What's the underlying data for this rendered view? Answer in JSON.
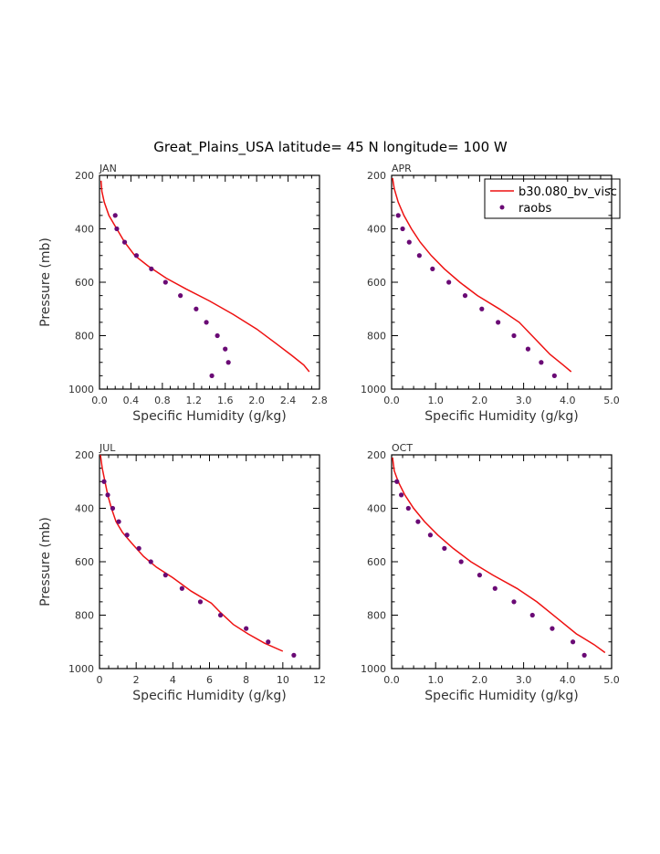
{
  "page_title": "Great_Plains_USA  latitude= 45 N longitude= 100 W",
  "colors": {
    "model": "#ee1111",
    "obs": "#6a0a75",
    "axis": "#000000",
    "text": "#333333"
  },
  "legend": {
    "model_label": "b30.080_bv_visc",
    "obs_label": "raobs"
  },
  "chart_data": [
    {
      "panel": "JAN",
      "type": "line",
      "xlabel": "Specific Humidity (g/kg)",
      "ylabel": "Pressure (mb)",
      "xlim": [
        0,
        2.8
      ],
      "ylim": [
        200,
        1000
      ],
      "xticks": [
        0.0,
        0.4,
        0.8,
        1.2,
        1.6,
        2.0,
        2.4,
        2.8
      ],
      "xtick_labels": [
        "0.0",
        "0.4",
        "0.8",
        "1.2",
        "1.6",
        "2.0",
        "2.4",
        "2.8"
      ],
      "yticks": [
        200,
        400,
        600,
        800,
        1000
      ],
      "model": {
        "x": [
          0.02,
          0.03,
          0.06,
          0.12,
          0.22,
          0.32,
          0.45,
          0.62,
          0.85,
          1.1,
          1.4,
          1.7,
          2.0,
          2.25,
          2.45,
          2.6,
          2.67
        ],
        "y": [
          220,
          260,
          300,
          350,
          400,
          450,
          500,
          540,
          585,
          625,
          670,
          720,
          775,
          830,
          875,
          910,
          935
        ]
      },
      "obs": {
        "x": [
          0.2,
          0.22,
          0.32,
          0.47,
          0.66,
          0.84,
          1.03,
          1.23,
          1.36,
          1.5,
          1.6,
          1.64,
          1.43
        ],
        "y": [
          350,
          400,
          450,
          500,
          550,
          600,
          650,
          700,
          750,
          800,
          850,
          900,
          950
        ]
      }
    },
    {
      "panel": "APR",
      "type": "line",
      "xlabel": "Specific Humidity (g/kg)",
      "ylabel": "",
      "xlim": [
        0,
        5
      ],
      "ylim": [
        200,
        1000
      ],
      "xticks": [
        0,
        1,
        2,
        3,
        4,
        5
      ],
      "xtick_labels": [
        "0.0",
        "1.0",
        "2.0",
        "3.0",
        "4.0",
        "5.0"
      ],
      "yticks": [
        200,
        400,
        600,
        800,
        1000
      ],
      "show_legend": true,
      "model": {
        "x": [
          0.02,
          0.06,
          0.15,
          0.28,
          0.45,
          0.65,
          0.9,
          1.2,
          1.55,
          1.95,
          2.45,
          2.9,
          3.25,
          3.6,
          3.9,
          4.08
        ],
        "y": [
          210,
          250,
          300,
          350,
          400,
          450,
          500,
          550,
          600,
          650,
          700,
          750,
          810,
          870,
          910,
          935
        ]
      },
      "obs": {
        "x": [
          0.15,
          0.25,
          0.4,
          0.63,
          0.93,
          1.3,
          1.67,
          2.05,
          2.42,
          2.78,
          3.1,
          3.4,
          3.7
        ],
        "y": [
          350,
          400,
          450,
          500,
          550,
          600,
          650,
          700,
          750,
          800,
          850,
          900,
          950
        ]
      }
    },
    {
      "panel": "JUL",
      "type": "line",
      "xlabel": "Specific Humidity (g/kg)",
      "ylabel": "Pressure (mb)",
      "xlim": [
        0,
        12
      ],
      "ylim": [
        200,
        1000
      ],
      "xticks": [
        0,
        2,
        4,
        6,
        8,
        10,
        12
      ],
      "xtick_labels": [
        "0",
        "2",
        "4",
        "6",
        "8",
        "10",
        "12"
      ],
      "yticks": [
        200,
        400,
        600,
        800,
        1000
      ],
      "model": {
        "x": [
          0.05,
          0.15,
          0.3,
          0.45,
          0.65,
          0.9,
          1.25,
          1.75,
          2.4,
          3.1,
          4.0,
          5.0,
          6.1,
          6.6,
          7.3,
          8.1,
          9.0,
          10.0
        ],
        "y": [
          200,
          250,
          300,
          350,
          400,
          450,
          490,
          530,
          580,
          620,
          660,
          710,
          755,
          790,
          835,
          870,
          905,
          935
        ]
      },
      "obs": {
        "x": [
          0.25,
          0.45,
          0.72,
          1.05,
          1.5,
          2.15,
          2.8,
          3.6,
          4.5,
          5.5,
          6.6,
          8.0,
          9.2,
          10.6
        ],
        "y": [
          300,
          350,
          400,
          450,
          500,
          550,
          600,
          650,
          700,
          750,
          800,
          850,
          900,
          950
        ]
      }
    },
    {
      "panel": "OCT",
      "type": "line",
      "xlabel": "Specific Humidity (g/kg)",
      "ylabel": "",
      "xlim": [
        0,
        5
      ],
      "ylim": [
        200,
        1000
      ],
      "xticks": [
        0,
        1,
        2,
        3,
        4,
        5
      ],
      "xtick_labels": [
        "0.0",
        "1.0",
        "2.0",
        "3.0",
        "4.0",
        "5.0"
      ],
      "yticks": [
        200,
        400,
        600,
        800,
        1000
      ],
      "model": {
        "x": [
          0.02,
          0.06,
          0.15,
          0.3,
          0.5,
          0.75,
          1.05,
          1.4,
          1.8,
          2.3,
          2.85,
          3.3,
          3.75,
          4.2,
          4.6,
          4.85
        ],
        "y": [
          210,
          260,
          300,
          350,
          400,
          450,
          500,
          550,
          600,
          650,
          700,
          750,
          810,
          870,
          910,
          940
        ]
      },
      "obs": {
        "x": [
          0.12,
          0.22,
          0.38,
          0.6,
          0.88,
          1.2,
          1.58,
          2.0,
          2.35,
          2.78,
          3.2,
          3.65,
          4.12,
          4.38
        ],
        "y": [
          300,
          350,
          400,
          450,
          500,
          550,
          600,
          650,
          700,
          750,
          800,
          850,
          900,
          950
        ]
      }
    }
  ]
}
